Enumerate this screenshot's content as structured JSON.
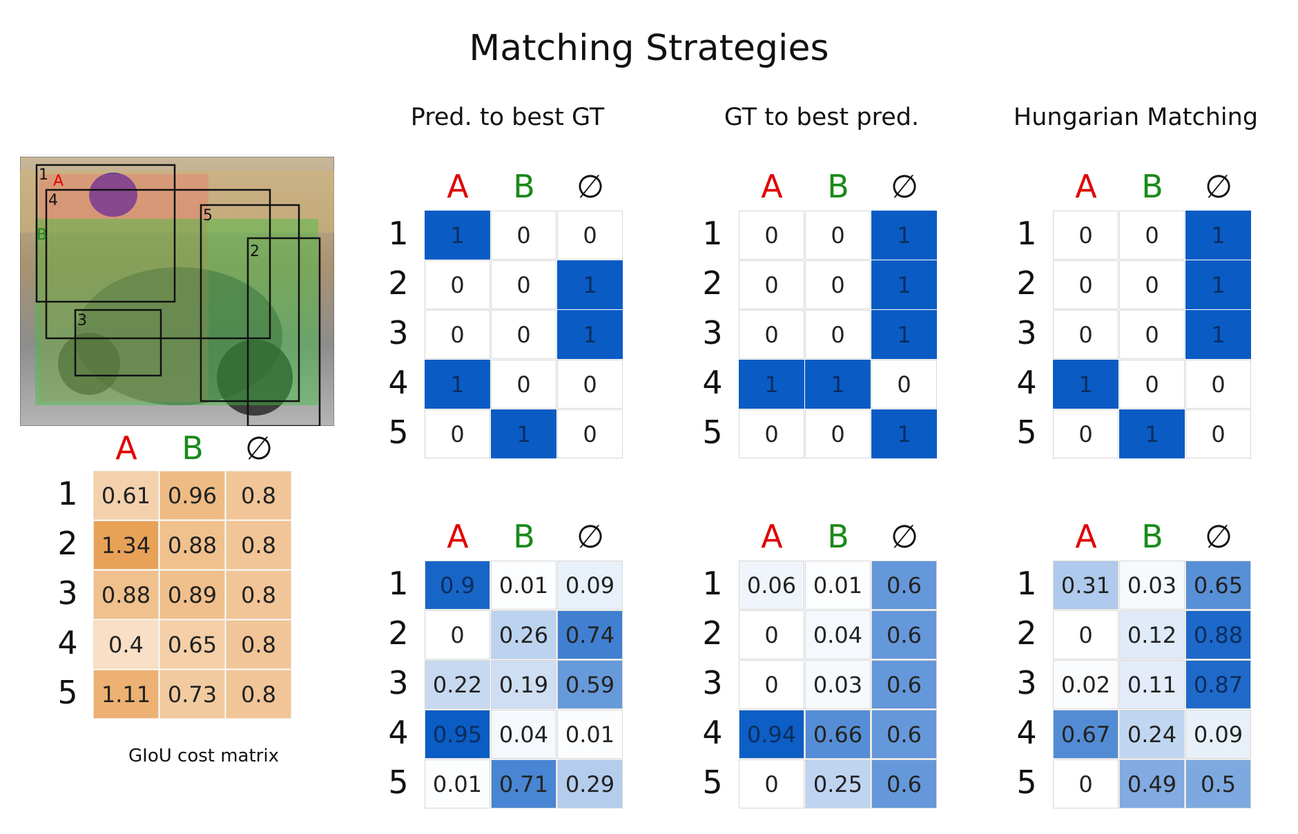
{
  "title": "Matching Strategies",
  "columns": [
    "A",
    "B",
    "∅"
  ],
  "column_colors": [
    "#e00000",
    "#1a8a1a",
    "#111111"
  ],
  "rows": [
    "1",
    "2",
    "3",
    "4",
    "5"
  ],
  "cost_matrix": {
    "caption": "GIoU cost matrix",
    "values": [
      [
        "0.61",
        "0.96",
        "0.8"
      ],
      [
        "1.34",
        "0.88",
        "0.8"
      ],
      [
        "0.88",
        "0.89",
        "0.8"
      ],
      [
        "0.4",
        "0.65",
        "0.8"
      ],
      [
        "1.11",
        "0.73",
        "0.8"
      ]
    ]
  },
  "photo": {
    "box_labels": [
      "1",
      "2",
      "3",
      "4",
      "5"
    ],
    "gt_labels": [
      "A",
      "B"
    ]
  },
  "strategies": [
    {
      "title": "Pred. to best GT",
      "assignment": [
        [
          "1",
          "0",
          "0"
        ],
        [
          "0",
          "0",
          "1"
        ],
        [
          "0",
          "0",
          "1"
        ],
        [
          "1",
          "0",
          "0"
        ],
        [
          "0",
          "1",
          "0"
        ]
      ],
      "probabilities": [
        [
          "0.9",
          "0.01",
          "0.09"
        ],
        [
          "0",
          "0.26",
          "0.74"
        ],
        [
          "0.22",
          "0.19",
          "0.59"
        ],
        [
          "0.95",
          "0.04",
          "0.01"
        ],
        [
          "0.01",
          "0.71",
          "0.29"
        ]
      ]
    },
    {
      "title": "GT to best pred.",
      "assignment": [
        [
          "0",
          "0",
          "1"
        ],
        [
          "0",
          "0",
          "1"
        ],
        [
          "0",
          "0",
          "1"
        ],
        [
          "1",
          "1",
          "0"
        ],
        [
          "0",
          "0",
          "1"
        ]
      ],
      "probabilities": [
        [
          "0.06",
          "0.01",
          "0.6"
        ],
        [
          "0",
          "0.04",
          "0.6"
        ],
        [
          "0",
          "0.03",
          "0.6"
        ],
        [
          "0.94",
          "0.66",
          "0.6"
        ],
        [
          "0",
          "0.25",
          "0.6"
        ]
      ]
    },
    {
      "title": "Hungarian Matching",
      "assignment": [
        [
          "0",
          "0",
          "1"
        ],
        [
          "0",
          "0",
          "1"
        ],
        [
          "0",
          "0",
          "1"
        ],
        [
          "1",
          "0",
          "0"
        ],
        [
          "0",
          "1",
          "0"
        ]
      ],
      "probabilities": [
        [
          "0.31",
          "0.03",
          "0.65"
        ],
        [
          "0",
          "0.12",
          "0.88"
        ],
        [
          "0.02",
          "0.11",
          "0.87"
        ],
        [
          "0.67",
          "0.24",
          "0.09"
        ],
        [
          "0",
          "0.49",
          "0.5"
        ]
      ]
    }
  ],
  "colors": {
    "assign_fill": "#0a5cc4",
    "cost_high": "#e8a258",
    "cost_low": "#f8dfc5"
  }
}
